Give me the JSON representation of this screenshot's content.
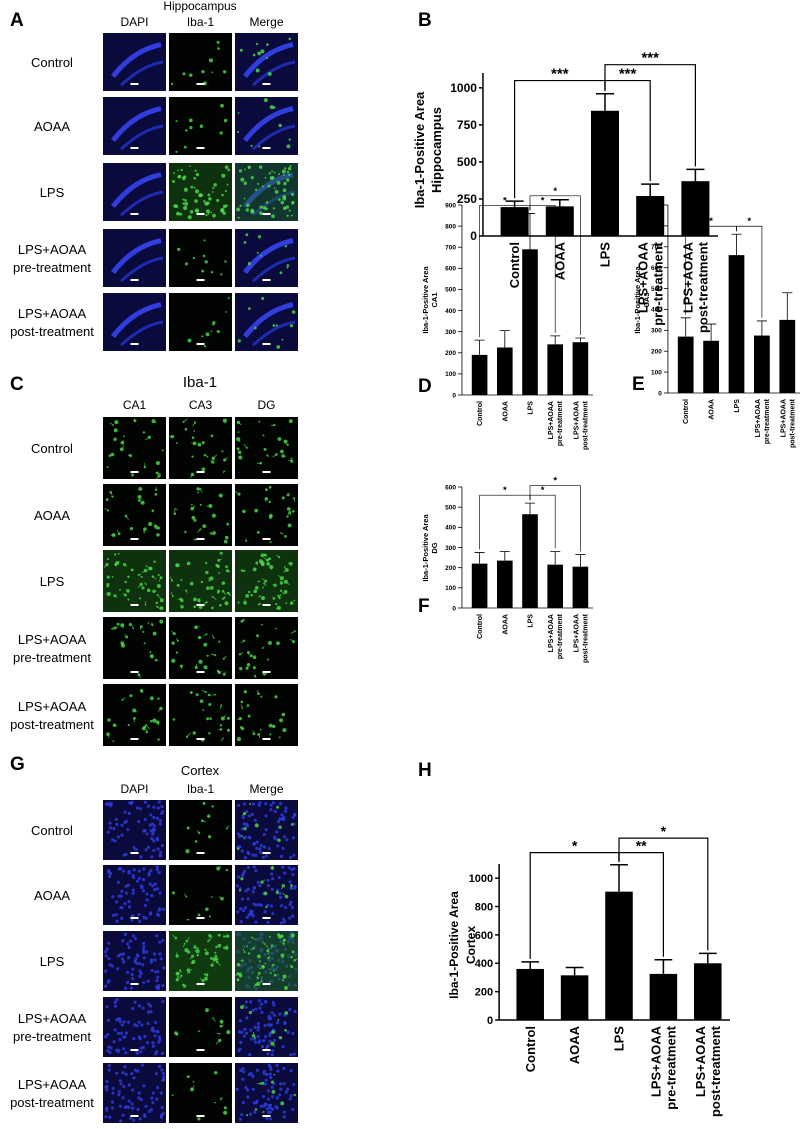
{
  "panels": [
    {
      "label": "A",
      "title": "Hippocampus",
      "columns": [
        "DAPI",
        "Iba-1",
        "Merge"
      ],
      "rows": [
        [
          "Control"
        ],
        [
          "AOAA"
        ],
        [
          "LPS"
        ],
        [
          "LPS+AOAA",
          "pre-treatment"
        ],
        [
          "LPS+AOAA",
          "post-treatment"
        ]
      ]
    },
    {
      "label": "C",
      "title": "Iba-1",
      "columns": [
        "CA1",
        "CA3",
        "DG"
      ],
      "rows": [
        [
          "Control"
        ],
        [
          "AOAA"
        ],
        [
          "LPS"
        ],
        [
          "LPS+AOAA",
          "pre-treatment"
        ],
        [
          "LPS+AOAA",
          "post-treatment"
        ]
      ]
    },
    {
      "label": "G",
      "title": "Cortex",
      "columns": [
        "DAPI",
        "Iba-1",
        "Merge"
      ],
      "rows": [
        [
          "Control"
        ],
        [
          "AOAA"
        ],
        [
          "LPS"
        ],
        [
          "LPS+AOAA",
          "pre-treatment"
        ],
        [
          "LPS+AOAA",
          "post-treatment"
        ]
      ]
    }
  ],
  "chart_data": [
    {
      "label": "B",
      "type": "bar",
      "ylabel": [
        "Iba-1-Positive Area",
        "Hippocampus"
      ],
      "categories": [
        [
          "Control"
        ],
        [
          "AOAA"
        ],
        [
          "LPS"
        ],
        [
          "LPS+AOAA",
          "pre-treatment"
        ],
        [
          "LPS+AOAA",
          "post-treatment"
        ]
      ],
      "values": [
        195,
        200,
        845,
        270,
        370
      ],
      "errors": [
        40,
        45,
        115,
        80,
        80
      ],
      "color": "#000000",
      "ylim": [
        0,
        1100
      ],
      "yticks": [
        0,
        250,
        500,
        750,
        1000
      ],
      "significance": [
        {
          "from": 0,
          "to": 2,
          "label": "***"
        },
        {
          "from": 2,
          "to": 3,
          "label": "***"
        },
        {
          "from": 2,
          "to": 4,
          "label": "***"
        }
      ]
    },
    {
      "label": "D",
      "type": "bar",
      "ylabel": [
        "Iba-1-Positive Area",
        "CA1"
      ],
      "categories": [
        [
          "Control"
        ],
        [
          "AOAA"
        ],
        [
          "LPS"
        ],
        [
          "LPS+AOAA",
          "pre-treatment"
        ],
        [
          "LPS+AOAA",
          "post-treatment"
        ]
      ],
      "values": [
        190,
        225,
        690,
        240,
        250
      ],
      "errors": [
        70,
        80,
        170,
        40,
        20
      ],
      "color": "#000000",
      "ylim": [
        0,
        900
      ],
      "yticks": [
        0,
        100,
        200,
        300,
        400,
        500,
        600,
        700,
        800,
        900
      ],
      "significance": [
        {
          "from": 0,
          "to": 2,
          "label": "*"
        },
        {
          "from": 2,
          "to": 3,
          "label": "*"
        },
        {
          "from": 2,
          "to": 4,
          "label": "*"
        }
      ]
    },
    {
      "label": "E",
      "type": "bar",
      "ylabel": [
        "Iba-1-Positive Area",
        "CA3"
      ],
      "categories": [
        [
          "Control"
        ],
        [
          "AOAA"
        ],
        [
          "LPS"
        ],
        [
          "LPS+AOAA",
          "pre-treatment"
        ],
        [
          "LPS+AOAA",
          "post-treatment"
        ]
      ],
      "values": [
        270,
        250,
        660,
        275,
        350
      ],
      "errors": [
        90,
        80,
        100,
        70,
        130
      ],
      "color": "#000000",
      "ylim": [
        0,
        900
      ],
      "yticks": [
        0,
        100,
        200,
        300,
        400,
        500,
        600,
        700,
        800,
        900
      ],
      "significance": [
        {
          "from": 0,
          "to": 2,
          "label": "*"
        },
        {
          "from": 2,
          "to": 3,
          "label": "*"
        }
      ]
    },
    {
      "label": "F",
      "type": "bar",
      "ylabel": [
        "Iba-1-Positive Area",
        "DG"
      ],
      "categories": [
        [
          "Control"
        ],
        [
          "AOAA"
        ],
        [
          "LPS"
        ],
        [
          "LPS+AOAA",
          "pre-treatment"
        ],
        [
          "LPS+AOAA",
          "post-treatment"
        ]
      ],
      "values": [
        220,
        235,
        465,
        215,
        205
      ],
      "errors": [
        55,
        45,
        55,
        65,
        60
      ],
      "color": "#000000",
      "ylim": [
        0,
        600
      ],
      "yticks": [
        0,
        100,
        200,
        300,
        400,
        500,
        600
      ],
      "significance": [
        {
          "from": 0,
          "to": 2,
          "label": "*"
        },
        {
          "from": 2,
          "to": 3,
          "label": "*"
        },
        {
          "from": 2,
          "to": 4,
          "label": "*"
        }
      ]
    },
    {
      "label": "H",
      "type": "bar",
      "ylabel": [
        "Iba-1-Positive Area",
        "Cortex"
      ],
      "categories": [
        [
          "Control"
        ],
        [
          "AOAA"
        ],
        [
          "LPS"
        ],
        [
          "LPS+AOAA",
          "pre-treatment"
        ],
        [
          "LPS+AOAA",
          "post-treatment"
        ]
      ],
      "values": [
        360,
        315,
        905,
        325,
        400
      ],
      "errors": [
        50,
        55,
        190,
        100,
        70
      ],
      "color": "#000000",
      "ylim": [
        0,
        1100
      ],
      "yticks": [
        0,
        200,
        400,
        600,
        800,
        1000
      ],
      "significance": [
        {
          "from": 0,
          "to": 2,
          "label": "*"
        },
        {
          "from": 2,
          "to": 3,
          "label": "**"
        },
        {
          "from": 2,
          "to": 4,
          "label": "*"
        }
      ]
    }
  ]
}
